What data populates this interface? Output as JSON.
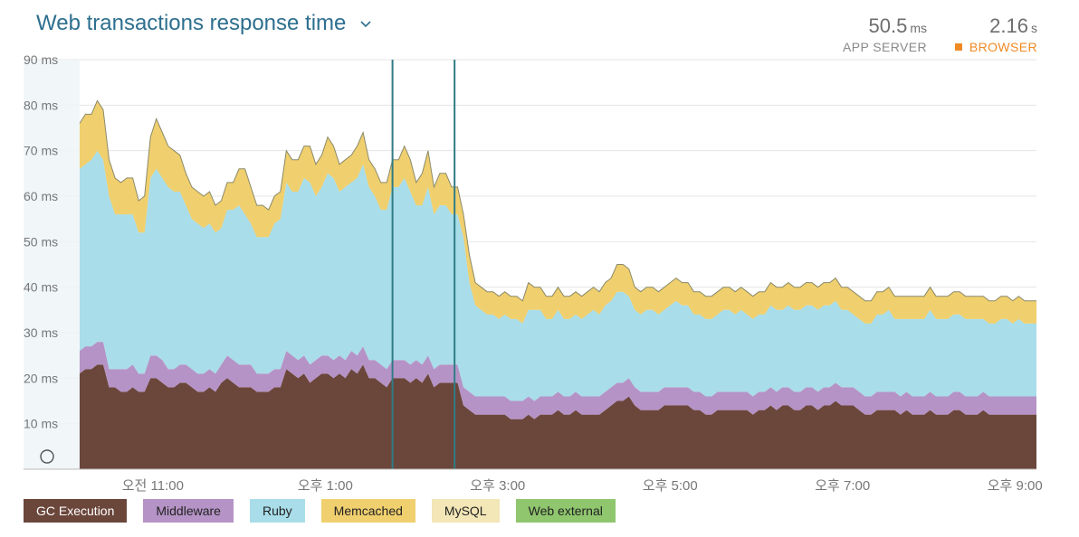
{
  "header": {
    "title": "Web transactions response time",
    "app_server": {
      "value": "50.5",
      "unit": "ms",
      "label": "APP SERVER"
    },
    "browser": {
      "value": "2.16",
      "unit": "s",
      "label": "BROWSER"
    }
  },
  "colors": {
    "gc": "#6b463b",
    "middleware": "#b593c6",
    "ruby": "#a8dde9",
    "memcached": "#f0cf6e",
    "mysql": "#f3e6b7",
    "web_external": "#8fc66e",
    "browser_accent": "#f08a24",
    "grid": "#e4e4e4",
    "tick": "#777777"
  },
  "chart_data": {
    "type": "area",
    "stacked": true,
    "ylim": [
      0,
      90
    ],
    "yticks": [
      {
        "value": 10,
        "label": "10 ms"
      },
      {
        "value": 20,
        "label": "20 ms"
      },
      {
        "value": 30,
        "label": "30 ms"
      },
      {
        "value": 40,
        "label": "40 ms"
      },
      {
        "value": 50,
        "label": "50 ms"
      },
      {
        "value": 60,
        "label": "60 ms"
      },
      {
        "value": 70,
        "label": "70 ms"
      },
      {
        "value": 80,
        "label": "80 ms"
      },
      {
        "value": 90,
        "label": "90 ms"
      }
    ],
    "xlim": [
      9.5,
      21.25
    ],
    "xticks": [
      {
        "value": 11,
        "label": "오전 11:00"
      },
      {
        "value": 13,
        "label": "오후 1:00"
      },
      {
        "value": 15,
        "label": "오후 3:00"
      },
      {
        "value": 17,
        "label": "오후 5:00"
      },
      {
        "value": 19,
        "label": "오후 7:00"
      },
      {
        "value": 21,
        "label": "오후 9:00"
      }
    ],
    "data_start": 10.15,
    "deploy_markers": [
      13.78,
      14.5
    ],
    "grid": true,
    "legend_position": "bottom",
    "series": [
      {
        "name": "GC Execution",
        "key": "gc",
        "values": [
          21,
          22,
          22,
          23,
          23,
          18,
          18,
          17,
          17,
          18,
          17,
          17,
          20,
          20,
          19,
          18,
          18,
          19,
          19,
          18,
          17,
          17,
          18,
          17,
          19,
          20,
          19,
          18,
          18,
          18,
          17,
          17,
          17,
          18,
          18,
          22,
          21,
          20,
          21,
          19,
          20,
          21,
          21,
          20,
          21,
          20,
          22,
          21,
          23,
          20,
          20,
          19,
          18,
          20,
          20,
          20,
          19,
          20,
          19,
          21,
          18,
          19,
          19,
          19,
          19,
          14,
          13,
          12,
          12,
          12,
          12,
          12,
          12,
          11,
          11,
          11,
          12,
          11,
          12,
          12,
          12,
          13,
          12,
          12,
          13,
          12,
          12,
          12,
          12,
          13,
          14,
          15,
          15,
          16,
          14,
          13,
          13,
          13,
          13,
          14,
          14,
          14,
          14,
          14,
          13,
          13,
          12,
          12,
          13,
          13,
          13,
          13,
          13,
          13,
          12,
          13,
          13,
          14,
          13,
          14,
          14,
          13,
          13,
          14,
          14,
          13,
          14,
          14,
          15,
          14,
          14,
          14,
          13,
          12,
          12,
          13,
          13,
          13,
          13,
          12,
          13,
          12,
          12,
          12,
          13,
          12,
          12,
          12,
          13,
          13,
          12,
          12,
          12,
          13,
          12,
          12,
          12,
          12,
          12,
          12,
          12,
          12,
          12
        ]
      },
      {
        "name": "Middleware",
        "key": "middleware",
        "values": [
          5,
          5,
          5,
          5,
          5,
          4,
          4,
          5,
          5,
          5,
          4,
          4,
          5,
          5,
          5,
          4,
          4,
          4,
          4,
          4,
          4,
          4,
          4,
          4,
          4,
          5,
          5,
          5,
          5,
          5,
          4,
          4,
          4,
          4,
          4,
          4,
          4,
          4,
          4,
          4,
          4,
          4,
          4,
          4,
          4,
          4,
          4,
          4,
          4,
          4,
          4,
          4,
          4,
          4,
          4,
          4,
          4,
          4,
          4,
          4,
          4,
          4,
          4,
          4,
          4,
          4,
          4,
          4,
          4,
          4,
          4,
          4,
          4,
          4,
          4,
          4,
          4,
          4,
          4,
          4,
          4,
          4,
          4,
          4,
          4,
          4,
          4,
          4,
          4,
          4,
          4,
          4,
          4,
          4,
          4,
          4,
          4,
          4,
          4,
          4,
          4,
          4,
          4,
          4,
          4,
          4,
          4,
          4,
          4,
          4,
          4,
          4,
          4,
          4,
          4,
          4,
          4,
          4,
          4,
          4,
          4,
          4,
          4,
          4,
          4,
          4,
          4,
          4,
          4,
          4,
          4,
          4,
          4,
          4,
          4,
          4,
          4,
          4,
          4,
          4,
          4,
          4,
          4,
          4,
          4,
          4,
          4,
          4,
          4,
          4,
          4,
          4,
          4,
          4,
          4,
          4,
          4,
          4,
          4,
          4,
          4,
          4,
          4
        ]
      },
      {
        "name": "Ruby",
        "key": "ruby",
        "values": [
          40,
          40,
          41,
          42,
          40,
          38,
          34,
          34,
          34,
          33,
          31,
          31,
          39,
          41,
          40,
          40,
          39,
          38,
          35,
          33,
          33,
          32,
          32,
          31,
          30,
          32,
          33,
          35,
          33,
          31,
          30,
          30,
          30,
          32,
          33,
          37,
          36,
          37,
          39,
          40,
          36,
          37,
          40,
          40,
          36,
          38,
          37,
          39,
          40,
          38,
          36,
          34,
          35,
          38,
          38,
          40,
          38,
          34,
          35,
          37,
          34,
          35,
          35,
          33,
          33,
          33,
          24,
          20,
          19,
          18,
          18,
          17,
          18,
          18,
          18,
          17,
          19,
          20,
          19,
          17,
          17,
          18,
          17,
          17,
          17,
          17,
          18,
          19,
          18,
          19,
          19,
          20,
          20,
          18,
          17,
          17,
          18,
          18,
          17,
          17,
          18,
          19,
          18,
          18,
          17,
          17,
          17,
          17,
          17,
          18,
          18,
          17,
          18,
          17,
          17,
          17,
          17,
          18,
          18,
          17,
          18,
          18,
          18,
          18,
          18,
          18,
          18,
          18,
          18,
          17,
          17,
          16,
          16,
          16,
          16,
          17,
          17,
          18,
          16,
          17,
          16,
          17,
          17,
          17,
          18,
          17,
          17,
          17,
          17,
          17,
          17,
          17,
          17,
          16,
          16,
          16,
          17,
          17,
          16,
          17,
          16,
          16,
          16
        ]
      },
      {
        "name": "Memcached",
        "key": "memcached",
        "values": [
          10,
          11,
          10,
          11,
          11,
          8,
          8,
          7,
          8,
          8,
          7,
          8,
          9,
          11,
          10,
          9,
          9,
          8,
          7,
          7,
          7,
          7,
          7,
          6,
          6,
          6,
          6,
          8,
          10,
          8,
          7,
          7,
          6,
          6,
          6,
          7,
          7,
          7,
          7,
          8,
          7,
          7,
          8,
          7,
          6,
          6,
          6,
          7,
          7,
          6,
          6,
          6,
          6,
          6,
          6,
          7,
          7,
          5,
          7,
          8,
          6,
          7,
          7,
          6,
          6,
          5,
          6,
          5,
          5,
          5,
          5,
          5,
          5,
          5,
          5,
          5,
          6,
          5,
          5,
          5,
          5,
          5,
          5,
          5,
          5,
          5,
          5,
          5,
          5,
          5,
          5,
          6,
          6,
          6,
          5,
          5,
          5,
          5,
          5,
          5,
          5,
          5,
          5,
          5,
          5,
          5,
          5,
          5,
          5,
          5,
          5,
          5,
          5,
          5,
          5,
          5,
          5,
          5,
          5,
          5,
          5,
          5,
          5,
          5,
          5,
          5,
          5,
          5,
          5,
          5,
          5,
          5,
          5,
          5,
          5,
          5,
          5,
          5,
          5,
          5,
          5,
          5,
          5,
          5,
          5,
          5,
          5,
          5,
          5,
          5,
          5,
          5,
          5,
          5,
          5,
          5,
          5,
          5,
          5,
          5,
          5,
          5,
          5
        ]
      },
      {
        "name": "MySQL",
        "key": "mysql",
        "values": [
          0,
          0,
          0,
          0,
          0,
          0,
          0,
          0,
          0,
          0,
          0,
          0,
          0,
          0,
          0,
          0,
          0,
          0,
          0,
          0,
          0,
          0,
          0,
          0,
          0,
          0,
          0,
          0,
          0,
          0,
          0,
          0,
          0,
          0,
          0,
          0,
          0,
          0,
          0,
          0,
          0,
          0,
          0,
          0,
          0,
          0,
          0,
          0,
          0,
          0,
          0,
          0,
          0,
          0,
          0,
          0,
          0,
          0,
          0,
          0,
          0,
          0,
          0,
          0,
          0,
          0,
          0,
          0,
          0,
          0,
          0,
          0,
          0,
          0,
          0,
          0,
          0,
          0,
          0,
          0,
          0,
          0,
          0,
          0,
          0,
          0,
          0,
          0,
          0,
          0,
          0,
          0,
          0,
          0,
          0,
          0,
          0,
          0,
          0,
          0,
          0,
          0,
          0,
          0,
          0,
          0,
          0,
          0,
          0,
          0,
          0,
          0,
          0,
          0,
          0,
          0,
          0,
          0,
          0,
          0,
          0,
          0,
          0,
          0,
          0,
          0,
          0,
          0,
          0,
          0,
          0,
          0,
          0,
          0,
          0,
          0,
          0,
          0,
          0,
          0,
          0,
          0,
          0,
          0,
          0,
          0,
          0,
          0,
          0,
          0,
          0,
          0,
          0,
          0,
          0,
          0,
          0,
          0,
          0,
          0,
          0,
          0,
          0
        ]
      },
      {
        "name": "Web external",
        "key": "web_external",
        "values": [
          0,
          0,
          0,
          0,
          0,
          0,
          0,
          0,
          0,
          0,
          0,
          0,
          0,
          0,
          0,
          0,
          0,
          0,
          0,
          0,
          0,
          0,
          0,
          0,
          0,
          0,
          0,
          0,
          0,
          0,
          0,
          0,
          0,
          0,
          0,
          0,
          0,
          0,
          0,
          0,
          0,
          0,
          0,
          0,
          0,
          0,
          0,
          0,
          0,
          0,
          0,
          0,
          0,
          0,
          0,
          0,
          0,
          0,
          0,
          0,
          0,
          0,
          0,
          0,
          0,
          0,
          0,
          0,
          0,
          0,
          0,
          0,
          0,
          0,
          0,
          0,
          0,
          0,
          0,
          0,
          0,
          0,
          0,
          0,
          0,
          0,
          0,
          0,
          0,
          0,
          0,
          0,
          0,
          0,
          0,
          0,
          0,
          0,
          0,
          0,
          0,
          0,
          0,
          0,
          0,
          0,
          0,
          0,
          0,
          0,
          0,
          0,
          0,
          0,
          0,
          0,
          0,
          0,
          0,
          0,
          0,
          0,
          0,
          0,
          0,
          0,
          0,
          0,
          0,
          0,
          0,
          0,
          0,
          0,
          0,
          0,
          0,
          0,
          0,
          0,
          0,
          0,
          0,
          0,
          0,
          0,
          0,
          0,
          0,
          0,
          0,
          0,
          0,
          0,
          0,
          0,
          0,
          0,
          0,
          0,
          0,
          0,
          0
        ]
      }
    ]
  }
}
